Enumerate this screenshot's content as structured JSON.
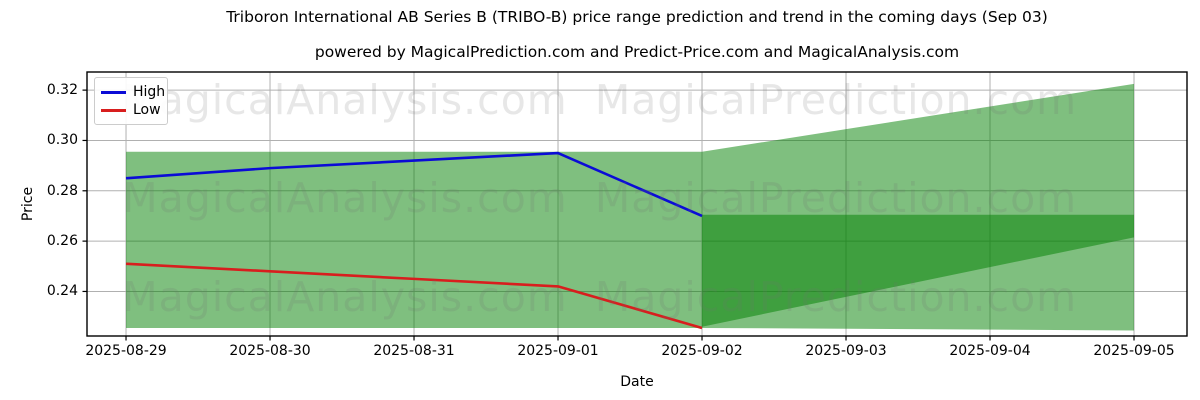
{
  "title": "Triboron International AB Series B (TRIBO-B) price range prediction and trend in the coming days (Sep 03)",
  "subtitle": "powered by MagicalPrediction.com and Predict-Price.com and MagicalAnalysis.com",
  "watermarks": {
    "left_text": "MagicalAnalysis.com",
    "right_text": "MagicalPrediction.com"
  },
  "legend": {
    "entries": [
      {
        "label": "High",
        "color": "#0b0bd6"
      },
      {
        "label": "Low",
        "color": "#d81e1e"
      }
    ]
  },
  "chart_data": {
    "type": "line",
    "title": "Triboron International AB Series B (TRIBO-B) price range prediction and trend in the coming days (Sep 03)",
    "xlabel": "Date",
    "ylabel": "Price",
    "categories": [
      "2025-08-29",
      "2025-08-30",
      "2025-08-31",
      "2025-09-01",
      "2025-09-02",
      "2025-09-03",
      "2025-09-04",
      "2025-09-05"
    ],
    "series": [
      {
        "name": "High",
        "color": "#0b0bd6",
        "x": [
          0,
          1,
          2,
          3,
          4
        ],
        "values": [
          0.285,
          0.289,
          0.292,
          0.295,
          0.27
        ]
      },
      {
        "name": "Low",
        "color": "#d81e1e",
        "x": [
          0,
          1,
          2,
          3,
          4
        ],
        "values": [
          0.251,
          0.248,
          0.245,
          0.242,
          0.2255
        ]
      }
    ],
    "bands": {
      "fill_color": "#008000",
      "fill_opacity": 0.5,
      "historical_range": {
        "x": [
          0,
          4
        ],
        "top": [
          0.2955,
          0.2955
        ],
        "bottom": [
          0.2255,
          0.2255
        ]
      },
      "forecast_fan": {
        "x": [
          4,
          7
        ],
        "top": [
          0.2955,
          0.3225
        ],
        "bottom": [
          0.2255,
          0.2245
        ]
      },
      "forecast_band": {
        "x": [
          4,
          7
        ],
        "top": [
          0.2705,
          0.2705
        ],
        "bottom": [
          0.226,
          0.2615
        ]
      }
    },
    "yticks": [
      0.24,
      0.26,
      0.28,
      0.3,
      0.32
    ],
    "ylim": [
      0.2223,
      0.3272
    ],
    "xlim": [
      -0.271,
      7.368
    ],
    "grid": true,
    "grid_color": "#b0b0b0",
    "legend_position": "upper left"
  }
}
